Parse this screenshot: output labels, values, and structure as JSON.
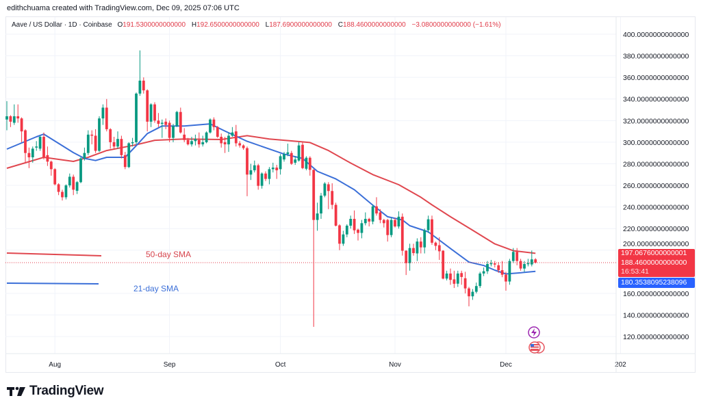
{
  "credit": "edithchuama created with TradingView.com, Dec 09, 2025 07:06 UTC",
  "legend": {
    "symbol": "Aave / US Dollar · 1D · Coinbase",
    "open_label": "O",
    "open": "191.5300000000000",
    "high_label": "H",
    "high": "192.6500000000000",
    "low_label": "L",
    "low": "187.6900000000000",
    "close_label": "C",
    "close": "188.4600000000000",
    "change": "−3.0800000000000 (−1.61%)"
  },
  "price_tags": {
    "sma50": "197.0676000000001",
    "last_price": "188.4600000000000",
    "countdown": "16:53:41",
    "sma21": "180.3538095238096"
  },
  "annotations": {
    "sma50": "50-day SMA",
    "sma21": "21-day SMA"
  },
  "logo": {
    "text": "TradingView"
  },
  "colors": {
    "up": "#089981",
    "down": "#f23645",
    "sma50": "#e0474f",
    "sma21": "#3b6fd8",
    "grid": "#f0f3fa",
    "tag_red": "#f23645",
    "tag_blue": "#2962ff"
  },
  "icons": [
    "lightning-event-icon",
    "us-flag-event-icon"
  ],
  "chart_data": {
    "type": "candlestick",
    "title": "Aave / US Dollar · 1D · Coinbase",
    "ylim": [
      110,
      410
    ],
    "y_ticks": [
      "400.0000000000000",
      "380.0000000000000",
      "360.0000000000000",
      "340.0000000000000",
      "320.0000000000000",
      "300.0000000000000",
      "280.0000000000000",
      "260.0000000000000",
      "240.0000000000000",
      "220.0000000000000",
      "200.0000000000000",
      "160.0000000000000",
      "140.0000000000000",
      "120.0000000000000"
    ],
    "x_ticks": [
      {
        "label": "Aug",
        "date": "2025-08-01"
      },
      {
        "label": "Sep",
        "date": "2025-09-01"
      },
      {
        "label": "Oct",
        "date": "2025-10-01"
      },
      {
        "label": "Nov",
        "date": "2025-11-01"
      },
      {
        "label": "Dec",
        "date": "2025-12-01"
      },
      {
        "label": "202",
        "date": "2026-01-01"
      }
    ],
    "x_end": "2026-01-05",
    "grid": true,
    "columns": [
      "date",
      "open",
      "high",
      "low",
      "close"
    ],
    "candles": [
      [
        "2025-07-19",
        321,
        338,
        311,
        324
      ],
      [
        "2025-07-20",
        324,
        325,
        314,
        319
      ],
      [
        "2025-07-21",
        318,
        335,
        316,
        324
      ],
      [
        "2025-07-22",
        324,
        335,
        318,
        322
      ],
      [
        "2025-07-23",
        322,
        323,
        300,
        310
      ],
      [
        "2025-07-24",
        311,
        312,
        281,
        290
      ],
      [
        "2025-07-25",
        290,
        295,
        276,
        286
      ],
      [
        "2025-07-26",
        286,
        296,
        281,
        294
      ],
      [
        "2025-07-27",
        295,
        301,
        292,
        296
      ],
      [
        "2025-07-28",
        294,
        306,
        292,
        305
      ],
      [
        "2025-07-29",
        305,
        309,
        284,
        286
      ],
      [
        "2025-07-30",
        288,
        296,
        278,
        282
      ],
      [
        "2025-07-31",
        282,
        283,
        269,
        275
      ],
      [
        "2025-08-01",
        275,
        276,
        260,
        261
      ],
      [
        "2025-08-02",
        261,
        262,
        251,
        254
      ],
      [
        "2025-08-03",
        254,
        256,
        246,
        249
      ],
      [
        "2025-08-04",
        249,
        261,
        247,
        260
      ],
      [
        "2025-08-05",
        260,
        271,
        258,
        268
      ],
      [
        "2025-08-06",
        268,
        270,
        251,
        256
      ],
      [
        "2025-08-07",
        255,
        264,
        252,
        263
      ],
      [
        "2025-08-08",
        263,
        286,
        262,
        285
      ],
      [
        "2025-08-09",
        285,
        295,
        283,
        290
      ],
      [
        "2025-08-10",
        290,
        311,
        288,
        307
      ],
      [
        "2025-08-11",
        307,
        311,
        298,
        306
      ],
      [
        "2025-08-12",
        306,
        312,
        290,
        292
      ],
      [
        "2025-08-13",
        292,
        324,
        291,
        322
      ],
      [
        "2025-08-14",
        322,
        335,
        316,
        332
      ],
      [
        "2025-08-15",
        332,
        340,
        310,
        312
      ],
      [
        "2025-08-16",
        312,
        313,
        294,
        300
      ],
      [
        "2025-08-17",
        300,
        305,
        293,
        296
      ],
      [
        "2025-08-18",
        296,
        310,
        294,
        303
      ],
      [
        "2025-08-19",
        303,
        306,
        285,
        288
      ],
      [
        "2025-08-20",
        288,
        291,
        275,
        277
      ],
      [
        "2025-08-21",
        277,
        300,
        276,
        299
      ],
      [
        "2025-08-22",
        299,
        304,
        296,
        300
      ],
      [
        "2025-08-23",
        300,
        346,
        298,
        345
      ],
      [
        "2025-08-24",
        345,
        385,
        343,
        357
      ],
      [
        "2025-08-25",
        357,
        360,
        345,
        348
      ],
      [
        "2025-08-26",
        348,
        349,
        310,
        319
      ],
      [
        "2025-08-27",
        319,
        336,
        314,
        335
      ],
      [
        "2025-08-28",
        335,
        337,
        318,
        320
      ],
      [
        "2025-08-29",
        320,
        327,
        314,
        317
      ],
      [
        "2025-08-30",
        317,
        321,
        304,
        318
      ],
      [
        "2025-08-31",
        319,
        322,
        312,
        316
      ],
      [
        "2025-09-01",
        318,
        320,
        300,
        304
      ],
      [
        "2025-09-02",
        304,
        317,
        300,
        315
      ],
      [
        "2025-09-03",
        315,
        329,
        314,
        328
      ],
      [
        "2025-09-04",
        328,
        332,
        308,
        309
      ],
      [
        "2025-09-05",
        307,
        313,
        300,
        302
      ],
      [
        "2025-09-06",
        302,
        304,
        297,
        298
      ],
      [
        "2025-09-07",
        298,
        305,
        296,
        301
      ],
      [
        "2025-09-08",
        301,
        307,
        297,
        303
      ],
      [
        "2025-09-09",
        302,
        309,
        295,
        298
      ],
      [
        "2025-09-10",
        298,
        306,
        296,
        300
      ],
      [
        "2025-09-11",
        300,
        310,
        299,
        309
      ],
      [
        "2025-09-12",
        309,
        322,
        308,
        321
      ],
      [
        "2025-09-13",
        321,
        323,
        311,
        314
      ],
      [
        "2025-09-14",
        314,
        315,
        304,
        305
      ],
      [
        "2025-09-15",
        305,
        308,
        295,
        299
      ],
      [
        "2025-09-16",
        300,
        305,
        290,
        298
      ],
      [
        "2025-09-17",
        298,
        309,
        291,
        306
      ],
      [
        "2025-09-18",
        306,
        314,
        305,
        309
      ],
      [
        "2025-09-19",
        310,
        316,
        296,
        299
      ],
      [
        "2025-09-20",
        299,
        301,
        295,
        297
      ],
      [
        "2025-09-21",
        297,
        298,
        293,
        294.5
      ],
      [
        "2025-09-22",
        294.5,
        296,
        250,
        270
      ],
      [
        "2025-09-23",
        270,
        280,
        265,
        274
      ],
      [
        "2025-09-24",
        274,
        283,
        272,
        278.6
      ],
      [
        "2025-09-25",
        278.6,
        280,
        256,
        259.6
      ],
      [
        "2025-09-26",
        259.6,
        272,
        257,
        271
      ],
      [
        "2025-09-27",
        271,
        273,
        264,
        266
      ],
      [
        "2025-09-28",
        266,
        277,
        261,
        275
      ],
      [
        "2025-09-29",
        275,
        281,
        272,
        276.5
      ],
      [
        "2025-09-30",
        276.5,
        279,
        266,
        274
      ],
      [
        "2025-10-01",
        275,
        289,
        270,
        287
      ],
      [
        "2025-10-02",
        284,
        291,
        282,
        289
      ],
      [
        "2025-10-03",
        289,
        298.7,
        287,
        290.6
      ],
      [
        "2025-10-04",
        290,
        292,
        279,
        280
      ],
      [
        "2025-10-05",
        281,
        287,
        279,
        284
      ],
      [
        "2025-10-06",
        283,
        300,
        282,
        297
      ],
      [
        "2025-10-07",
        297.6,
        300,
        275,
        276
      ],
      [
        "2025-10-08",
        275.4,
        287,
        274,
        285.6
      ],
      [
        "2025-10-09",
        285.6,
        287,
        269,
        274.4
      ],
      [
        "2025-10-10",
        274.4,
        275,
        129,
        228
      ],
      [
        "2025-10-11",
        228,
        244,
        218,
        234
      ],
      [
        "2025-10-12",
        234,
        253,
        229,
        250.5
      ],
      [
        "2025-10-13",
        250.5,
        263,
        249,
        261.7
      ],
      [
        "2025-10-14",
        261,
        263,
        238,
        254.8
      ],
      [
        "2025-10-15",
        254.8,
        262,
        238,
        242
      ],
      [
        "2025-10-16",
        242,
        244,
        222,
        222.7
      ],
      [
        "2025-10-17",
        223,
        224,
        200,
        206
      ],
      [
        "2025-10-18",
        206,
        218,
        204,
        214.6
      ],
      [
        "2025-10-19",
        214.6,
        224,
        212,
        222.7
      ],
      [
        "2025-10-20",
        222.7,
        232,
        220,
        229
      ],
      [
        "2025-10-21",
        229,
        236.8,
        215,
        218.4
      ],
      [
        "2025-10-22",
        219,
        220,
        209,
        216
      ],
      [
        "2025-10-23",
        216,
        228,
        211,
        225
      ],
      [
        "2025-10-24",
        225,
        235,
        223,
        229
      ],
      [
        "2025-10-25",
        229,
        230,
        222,
        226.5
      ],
      [
        "2025-10-26",
        226.5,
        242,
        224,
        240.6
      ],
      [
        "2025-10-27",
        240.6,
        249,
        232,
        234
      ],
      [
        "2025-10-28",
        235,
        238,
        225,
        228
      ],
      [
        "2025-10-29",
        228,
        229,
        221,
        225
      ],
      [
        "2025-10-30",
        228,
        229,
        208,
        214
      ],
      [
        "2025-10-31",
        214,
        230,
        212,
        228
      ],
      [
        "2025-11-01",
        228,
        230,
        221,
        222
      ],
      [
        "2025-11-02",
        222,
        236,
        220,
        231
      ],
      [
        "2025-11-03",
        231,
        234,
        195,
        199.5
      ],
      [
        "2025-11-04",
        199.5,
        200,
        177,
        188
      ],
      [
        "2025-11-05",
        188,
        206,
        181,
        202
      ],
      [
        "2025-11-06",
        202,
        206,
        195,
        197.3
      ],
      [
        "2025-11-07",
        197,
        211,
        190,
        208
      ],
      [
        "2025-11-08",
        208,
        212,
        197,
        202.6
      ],
      [
        "2025-11-09",
        202.6,
        220,
        197,
        218.5
      ],
      [
        "2025-11-10",
        218.5,
        232,
        216,
        228.6
      ],
      [
        "2025-11-11",
        228.6,
        232,
        205,
        206.9
      ],
      [
        "2025-11-12",
        207,
        208,
        200,
        204
      ],
      [
        "2025-11-13",
        204.6,
        212,
        191,
        199
      ],
      [
        "2025-11-14",
        199.5,
        200,
        173,
        173.7
      ],
      [
        "2025-11-15",
        173.7,
        181,
        172,
        178.4
      ],
      [
        "2025-11-16",
        178.4,
        183,
        168,
        172.5
      ],
      [
        "2025-11-17",
        173,
        181,
        165,
        168.9
      ],
      [
        "2025-11-18",
        169,
        181,
        166,
        178.4
      ],
      [
        "2025-11-19",
        178.8,
        181,
        168,
        175.2
      ],
      [
        "2025-11-20",
        174,
        180,
        160,
        164.6
      ],
      [
        "2025-11-21",
        164.6,
        166,
        148,
        157.3
      ],
      [
        "2025-11-22",
        157.3,
        164,
        154,
        161.5
      ],
      [
        "2025-11-23",
        161.5,
        170,
        160,
        166.8
      ],
      [
        "2025-11-24",
        166.8,
        180,
        165,
        178.4
      ],
      [
        "2025-11-25",
        178.4,
        184,
        176,
        180.5
      ],
      [
        "2025-11-26",
        180.5,
        190,
        178,
        187.2
      ],
      [
        "2025-11-27",
        187,
        191,
        185,
        188
      ],
      [
        "2025-11-28",
        187.8,
        190,
        184,
        186.7
      ],
      [
        "2025-11-29",
        186,
        189,
        179,
        181.5
      ],
      [
        "2025-11-30",
        181.5,
        190,
        175,
        177.3
      ],
      [
        "2025-12-01",
        177.3,
        180,
        162.5,
        171
      ],
      [
        "2025-12-02",
        171,
        192,
        168,
        190
      ],
      [
        "2025-12-03",
        190,
        202,
        188,
        198.4
      ],
      [
        "2025-12-04",
        198.4,
        202,
        186,
        190
      ],
      [
        "2025-12-05",
        190,
        192,
        181,
        183
      ],
      [
        "2025-12-06",
        183,
        190,
        180,
        187.2
      ],
      [
        "2025-12-07",
        187,
        192,
        185,
        188
      ],
      [
        "2025-12-08",
        186.8,
        199.7,
        185,
        191.5
      ],
      [
        "2025-12-09",
        191.53,
        192.65,
        187.69,
        188.46
      ]
    ],
    "series": [
      {
        "name": "50-day SMA",
        "color": "#e0474f",
        "points": [
          [
            "2025-07-19",
            275.9
          ],
          [
            "2025-07-29",
            286
          ],
          [
            "2025-08-06",
            282.2
          ],
          [
            "2025-08-10",
            286
          ],
          [
            "2025-08-15",
            292.3
          ],
          [
            "2025-08-23",
            297.6
          ],
          [
            "2025-08-28",
            301.8
          ],
          [
            "2025-09-05",
            303
          ],
          [
            "2025-09-15",
            302.5
          ],
          [
            "2025-09-22",
            306
          ],
          [
            "2025-09-28",
            303
          ],
          [
            "2025-10-04",
            301.2
          ],
          [
            "2025-10-09",
            299.7
          ],
          [
            "2025-10-14",
            292.3
          ],
          [
            "2025-10-20",
            280.7
          ],
          [
            "2025-10-26",
            270
          ],
          [
            "2025-11-02",
            260.7
          ],
          [
            "2025-11-08",
            249
          ],
          [
            "2025-11-11",
            242
          ],
          [
            "2025-11-16",
            231
          ],
          [
            "2025-11-22",
            218.5
          ],
          [
            "2025-11-28",
            205.8
          ],
          [
            "2025-12-03",
            199.5
          ],
          [
            "2025-12-09",
            197.07
          ]
        ]
      },
      {
        "name": "21-day SMA",
        "color": "#3b6fd8",
        "points": [
          [
            "2025-07-19",
            293.6
          ],
          [
            "2025-07-27",
            305
          ],
          [
            "2025-07-29",
            307.5
          ],
          [
            "2025-08-06",
            290.4
          ],
          [
            "2025-08-09",
            285
          ],
          [
            "2025-08-12",
            283
          ],
          [
            "2025-08-15",
            286
          ],
          [
            "2025-08-20",
            286
          ],
          [
            "2025-08-23",
            296.8
          ],
          [
            "2025-08-26",
            308
          ],
          [
            "2025-08-30",
            315
          ],
          [
            "2025-09-05",
            315
          ],
          [
            "2025-09-12",
            317
          ],
          [
            "2025-09-16",
            310.3
          ],
          [
            "2025-09-22",
            300.8
          ],
          [
            "2025-10-02",
            289
          ],
          [
            "2025-10-07",
            285
          ],
          [
            "2025-10-11",
            273
          ],
          [
            "2025-10-16",
            266
          ],
          [
            "2025-10-21",
            256
          ],
          [
            "2025-10-26",
            241.7
          ],
          [
            "2025-10-30",
            231
          ],
          [
            "2025-11-03",
            228
          ],
          [
            "2025-11-05",
            222.7
          ],
          [
            "2025-11-10",
            217
          ],
          [
            "2025-11-16",
            201.6
          ],
          [
            "2025-11-21",
            189
          ],
          [
            "2025-11-25",
            185.8
          ],
          [
            "2025-11-28",
            181.5
          ],
          [
            "2025-12-01",
            178
          ],
          [
            "2025-12-04",
            178.8
          ],
          [
            "2025-12-09",
            180.35
          ]
        ]
      }
    ],
    "last_price": 188.46
  }
}
